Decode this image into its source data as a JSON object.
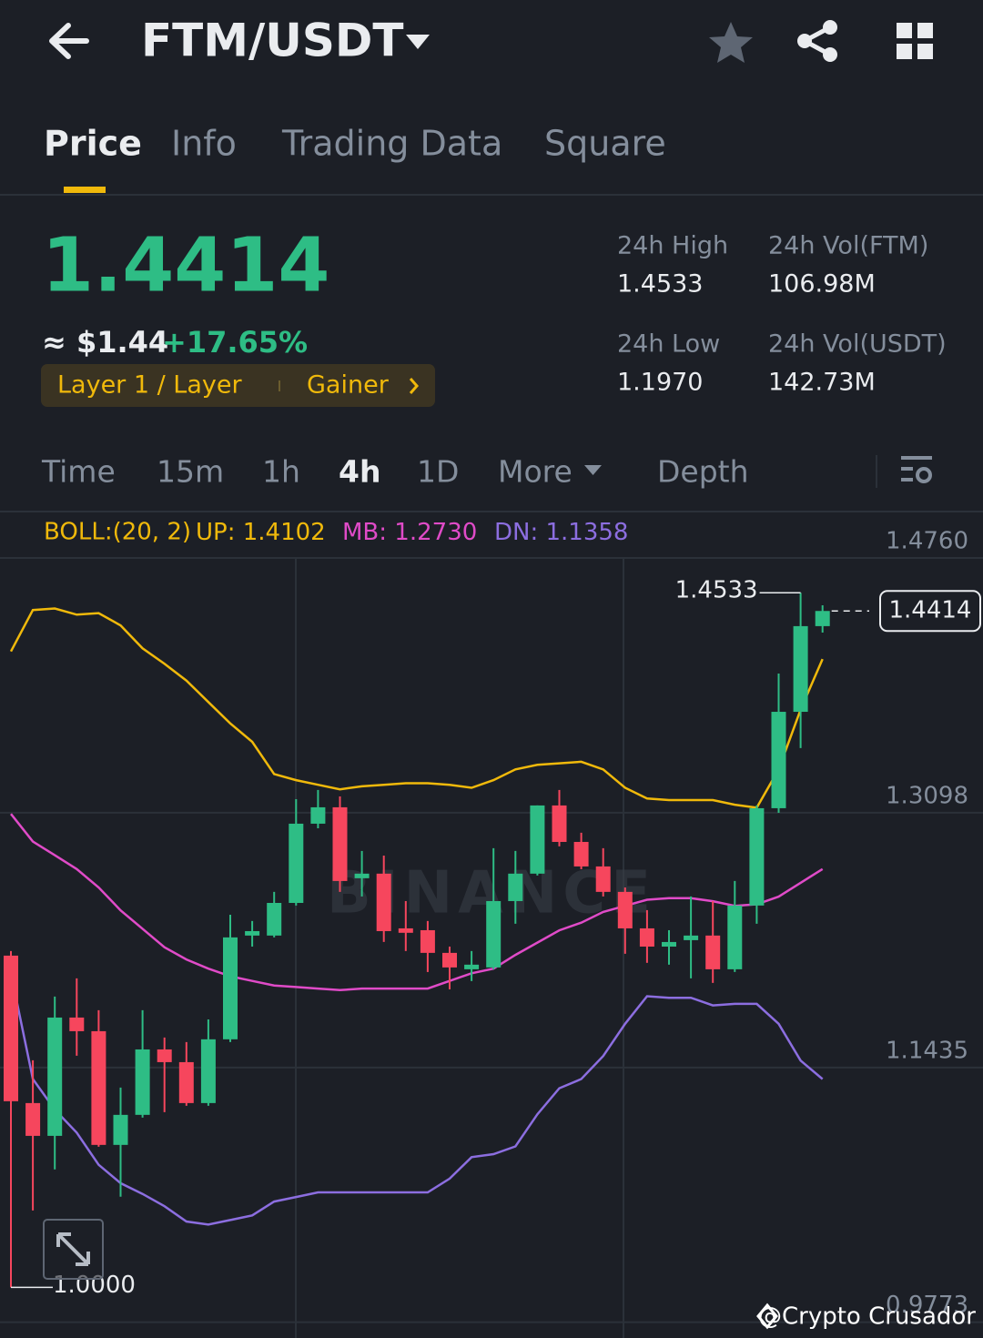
{
  "header": {
    "pair": "FTM/USDT"
  },
  "tabs": [
    "Price",
    "Info",
    "Trading Data",
    "Square"
  ],
  "ticker": {
    "price": "1.4414",
    "approx": "≈ $1.44",
    "change": "+17.65%",
    "tags": [
      "Layer 1 / Layer",
      "Gainer"
    ]
  },
  "stats": [
    {
      "label": "24h High",
      "value": "1.4533"
    },
    {
      "label": "24h Vol(FTM)",
      "value": "106.98M"
    },
    {
      "label": "24h Low",
      "value": "1.1970"
    },
    {
      "label": "24h Vol(USDT)",
      "value": "142.73M"
    }
  ],
  "intervals": [
    "Time",
    "15m",
    "1h",
    "4h",
    "1D",
    "More",
    "Depth"
  ],
  "chart_data": {
    "type": "candlestick",
    "indicator": "BOLL:(20, 2)",
    "up_color": "#2ebd85",
    "down_color": "#f6465d",
    "open": [
      1.2165,
      1.1203,
      1.0989,
      1.1761,
      1.1672,
      1.093,
      1.1126,
      1.1553,
      1.147,
      1.1203,
      1.1619,
      1.2296,
      1.2296,
      1.2509,
      1.3026,
      1.3133,
      1.267,
      1.27,
      1.2343,
      1.2331,
      1.2183,
      1.2076,
      1.2088,
      1.2521,
      1.27,
      1.3145,
      1.2907,
      1.2747,
      1.2581,
      1.2343,
      1.2224,
      1.2266,
      1.2296,
      1.2076,
      1.2492,
      1.3127,
      1.3756,
      1.4315
    ],
    "high": [
      1.2195,
      1.1482,
      1.1898,
      1.2017,
      1.1809,
      1.1304,
      1.1809,
      1.1631,
      1.1601,
      1.1749,
      1.2432,
      1.2391,
      1.2581,
      1.3186,
      1.3246,
      1.3204,
      1.2848,
      1.2818,
      1.2521,
      1.2391,
      1.2224,
      1.2195,
      1.2866,
      1.2848,
      1.3145,
      1.3246,
      1.2967,
      1.2866,
      1.261,
      1.2462,
      1.2331,
      1.2551,
      1.2521,
      1.2652,
      1.3145,
      1.4006,
      1.4533,
      1.4451
    ],
    "low": [
      1.0,
      1.0502,
      1.077,
      1.1512,
      1.0918,
      1.0592,
      1.1108,
      1.1144,
      1.1185,
      1.1185,
      1.1601,
      1.2224,
      1.2284,
      1.2492,
      1.2996,
      1.2581,
      1.2551,
      1.2254,
      1.2195,
      1.2058,
      1.1945,
      1.1999,
      1.2076,
      1.2373,
      1.2688,
      1.2878,
      1.2729,
      1.2551,
      1.2177,
      1.2118,
      1.2106,
      1.2017,
      1.1987,
      1.2058,
      1.2373,
      1.3097,
      1.3519,
      1.4273
    ],
    "close": [
      1.1215,
      1.0989,
      1.1761,
      1.1672,
      1.093,
      1.1126,
      1.1553,
      1.147,
      1.1203,
      1.1619,
      1.2284,
      1.2325,
      1.2509,
      1.3026,
      1.3133,
      1.2652,
      1.27,
      1.2325,
      1.2314,
      1.2183,
      1.2088,
      1.2106,
      1.2521,
      1.27,
      1.3145,
      1.2907,
      1.2747,
      1.2581,
      1.2343,
      1.2224,
      1.2254,
      1.2296,
      1.2076,
      1.2492,
      1.3127,
      1.3756,
      1.4315,
      1.4414
    ],
    "series": [
      {
        "name": "UP:",
        "value_label": "1.4102",
        "color": "#f0b90b",
        "values": [
          1.415,
          1.442,
          1.443,
          1.439,
          1.44,
          1.432,
          1.417,
          1.407,
          1.396,
          1.382,
          1.368,
          1.356,
          1.335,
          1.331,
          1.328,
          1.325,
          1.327,
          1.328,
          1.329,
          1.329,
          1.328,
          1.326,
          1.331,
          1.338,
          1.341,
          1.342,
          1.343,
          1.338,
          1.326,
          1.319,
          1.318,
          1.318,
          1.318,
          1.315,
          1.313,
          1.338,
          1.377,
          1.41
        ]
      },
      {
        "name": "MB:",
        "value_label": "1.2730",
        "color": "#e04bc8",
        "values": [
          1.309,
          1.291,
          1.282,
          1.273,
          1.261,
          1.246,
          1.234,
          1.222,
          1.214,
          1.208,
          1.203,
          1.2,
          1.197,
          1.196,
          1.195,
          1.194,
          1.195,
          1.195,
          1.195,
          1.195,
          1.2,
          1.205,
          1.208,
          1.217,
          1.225,
          1.233,
          1.238,
          1.245,
          1.249,
          1.253,
          1.254,
          1.254,
          1.252,
          1.249,
          1.25,
          1.255,
          1.264,
          1.273
        ]
      },
      {
        "name": "DN:",
        "value_label": "1.1358",
        "color": "#8c6ee0",
        "values": [
          1.205,
          1.136,
          1.116,
          1.101,
          1.08,
          1.068,
          1.061,
          1.053,
          1.043,
          1.041,
          1.044,
          1.047,
          1.056,
          1.059,
          1.062,
          1.062,
          1.062,
          1.062,
          1.062,
          1.062,
          1.071,
          1.085,
          1.087,
          1.092,
          1.113,
          1.13,
          1.136,
          1.151,
          1.172,
          1.19,
          1.189,
          1.189,
          1.184,
          1.185,
          1.185,
          1.172,
          1.148,
          1.136
        ]
      }
    ],
    "ylim": [
      0.967,
      1.5045
    ],
    "yticks": [
      {
        "value": 1.476,
        "label": "1.4760"
      },
      1.3098,
      1.1435,
      0.9773
    ],
    "grid": true,
    "annotations": {
      "high": "1.4533",
      "low": "1.0000",
      "last": "1.4414"
    },
    "watermark": "BINANCE"
  },
  "credit": "@Crypto Crusador"
}
